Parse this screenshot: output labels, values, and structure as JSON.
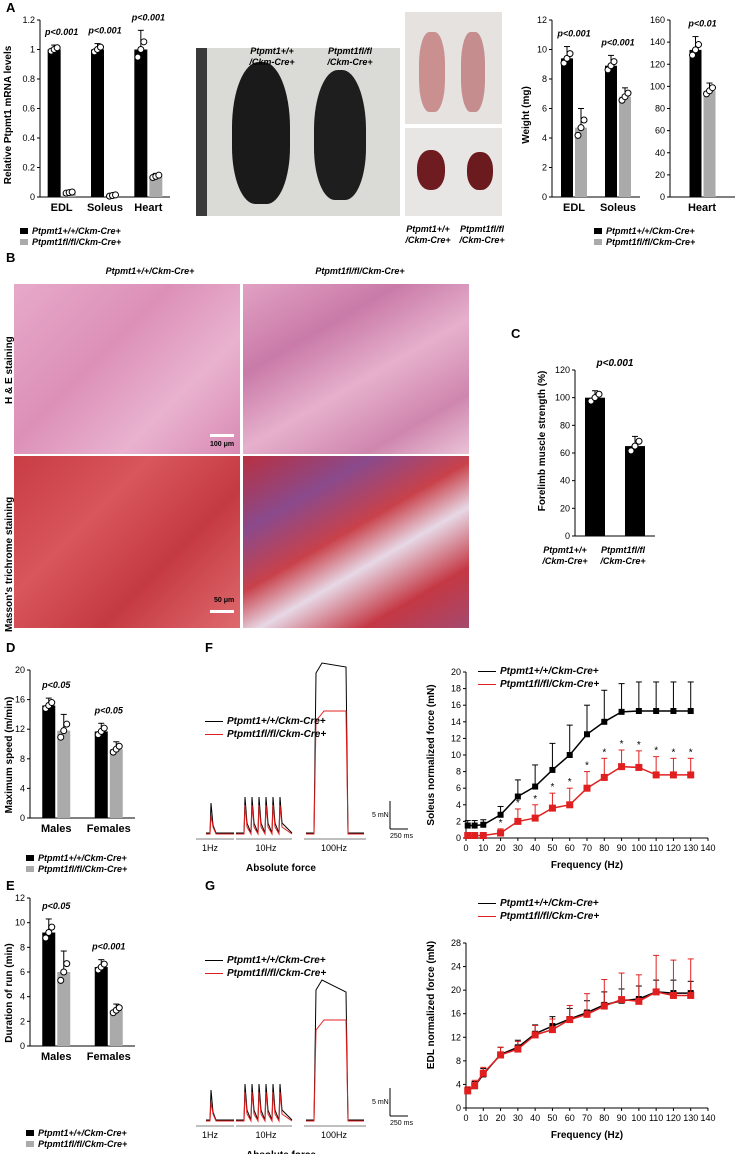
{
  "panels": {
    "A": "A",
    "B": "B",
    "C": "C",
    "D": "D",
    "E": "E",
    "F": "F",
    "G": "G"
  },
  "genotypes": {
    "wt": "Ptpmt1+/+/Ckm-Cre+",
    "ko": "Ptpmt1fl/fl/Ckm-Cre+",
    "wt_photo": "Ptpmt11+/+/Ckm-Cre+",
    "wt_top": "Ptpmt1+/+",
    "ko_top": "Ptpmt1fl/fl",
    "cre": "/Ckm-Cre+"
  },
  "histology": {
    "he_label": "H & E staining",
    "masson_label": "Masson's trichrome staining",
    "scale1": "100 μm",
    "scale2": "50 μm"
  },
  "traces": {
    "title": "Absolute force",
    "freq_labels": [
      "1Hz",
      "10Hz",
      "100Hz"
    ],
    "scale_y": "5 mN",
    "scale_x": "250 ms"
  },
  "chart_data": [
    {
      "id": "A1",
      "type": "bar",
      "categories": [
        "EDL",
        "Soleus",
        "Heart"
      ],
      "ylabel": "Relative Ptpmt1 mRNA levels",
      "ylim": [
        0,
        1.2
      ],
      "yticks": [
        0,
        0.2,
        0.4,
        0.6,
        0.8,
        1,
        1.2
      ],
      "series": [
        {
          "name": "Ptpmt1+/+/Ckm-Cre+",
          "values": [
            1.0,
            1.0,
            1.0
          ],
          "err": [
            0.03,
            0.04,
            0.13
          ]
        },
        {
          "name": "Ptpmt1fl/fl/Ckm-Cre+",
          "values": [
            0.03,
            0.01,
            0.14
          ],
          "err": [
            0.01,
            0.01,
            0.02
          ]
        }
      ],
      "pvalues": [
        "p<0.001",
        "p<0.001",
        "p<0.001"
      ]
    },
    {
      "id": "A2",
      "type": "bar",
      "categories": [
        "EDL",
        "Soleus"
      ],
      "ylabel": "Weight (mg)",
      "ylim": [
        0,
        12
      ],
      "yticks": [
        0,
        2,
        4,
        6,
        8,
        10,
        12
      ],
      "series": [
        {
          "name": "Ptpmt1+/+/Ckm-Cre+",
          "values": [
            9.4,
            8.9
          ],
          "err": [
            0.8,
            0.7
          ]
        },
        {
          "name": "Ptpmt1fl/fl/Ckm-Cre+",
          "values": [
            4.7,
            6.8
          ],
          "err": [
            1.3,
            0.6
          ]
        }
      ],
      "pvalues": [
        "p<0.001",
        "p<0.001"
      ]
    },
    {
      "id": "A3",
      "type": "bar",
      "categories": [
        "Heart"
      ],
      "ylim": [
        0,
        160
      ],
      "yticks": [
        0,
        20,
        40,
        60,
        80,
        100,
        120,
        140,
        160
      ],
      "series": [
        {
          "name": "Ptpmt1+/+/Ckm-Cre+",
          "values": [
            133
          ],
          "err": [
            12
          ]
        },
        {
          "name": "Ptpmt1fl/fl/Ckm-Cre+",
          "values": [
            96
          ],
          "err": [
            7
          ]
        }
      ],
      "pvalues": [
        "p<0.01"
      ]
    },
    {
      "id": "C",
      "type": "bar",
      "categories": [
        "Ptpmt1+/+/Ckm-Cre+",
        "Ptpmt1fl/fl/Ckm-Cre+"
      ],
      "ylabel": "Forelimb muscle strength (%)",
      "ylim": [
        0,
        120
      ],
      "yticks": [
        0,
        20,
        40,
        60,
        80,
        100,
        120
      ],
      "values": [
        100,
        65
      ],
      "err": [
        5,
        7
      ],
      "pvalue": "p<0.001"
    },
    {
      "id": "D",
      "type": "bar",
      "categories": [
        "Males",
        "Females"
      ],
      "ylabel": "Maximum speed (m/min)",
      "ylim": [
        0,
        20
      ],
      "yticks": [
        0,
        4,
        8,
        12,
        16,
        20
      ],
      "series": [
        {
          "name": "Ptpmt1+/+/Ckm-Cre+",
          "values": [
            15.2,
            11.7
          ],
          "err": [
            1.0,
            1.1
          ]
        },
        {
          "name": "Ptpmt1fl/fl/Ckm-Cre+",
          "values": [
            11.8,
            9.3
          ],
          "err": [
            2.2,
            1.0
          ]
        }
      ],
      "pvalues": [
        "p<0.05",
        "p<0.05"
      ]
    },
    {
      "id": "E",
      "type": "bar",
      "categories": [
        "Males",
        "Females"
      ],
      "ylabel": "Duration of run (min)",
      "ylim": [
        0,
        12
      ],
      "yticks": [
        0,
        2,
        4,
        6,
        8,
        10,
        12
      ],
      "series": [
        {
          "name": "Ptpmt1+/+/Ckm-Cre+",
          "values": [
            9.2,
            6.4
          ],
          "err": [
            1.1,
            0.6
          ]
        },
        {
          "name": "Ptpmt1fl/fl/Ckm-Cre+",
          "values": [
            6.0,
            2.9
          ],
          "err": [
            1.7,
            0.5
          ]
        }
      ],
      "pvalues": [
        "p<0.05",
        "p<0.001"
      ]
    },
    {
      "id": "F",
      "type": "line",
      "xlabel": "Frequency (Hz)",
      "ylabel": "Soleus normalized force (mN)",
      "xlim": [
        0,
        140
      ],
      "ylim": [
        0,
        20
      ],
      "xticks": [
        0,
        10,
        20,
        30,
        40,
        50,
        60,
        70,
        80,
        90,
        100,
        110,
        120,
        130,
        140
      ],
      "yticks": [
        0,
        2,
        4,
        6,
        8,
        10,
        12,
        14,
        16,
        18,
        20
      ],
      "x": [
        1,
        5,
        10,
        20,
        30,
        40,
        50,
        60,
        70,
        80,
        90,
        100,
        110,
        120,
        130
      ],
      "series": [
        {
          "name": "Ptpmt1+/+/Ckm-Cre+",
          "values": [
            1.5,
            1.5,
            1.6,
            2.8,
            5.0,
            6.2,
            8.2,
            10.0,
            12.5,
            14.0,
            15.2,
            15.3,
            15.3,
            15.3,
            15.3
          ],
          "err": [
            0.6,
            0.6,
            0.6,
            1.0,
            2.0,
            2.6,
            3.2,
            3.6,
            3.5,
            3.8,
            3.4,
            3.5,
            3.5,
            3.5,
            3.5
          ]
        },
        {
          "name": "Ptpmt1fl/fl/Ckm-Cre+",
          "values": [
            0.3,
            0.3,
            0.3,
            0.6,
            2.0,
            2.4,
            3.6,
            4.0,
            6.0,
            7.3,
            8.6,
            8.5,
            7.6,
            7.6,
            7.6
          ],
          "err": [
            0.2,
            0.2,
            0.2,
            0.5,
            1.5,
            1.6,
            1.8,
            2.0,
            2.0,
            2.3,
            2.0,
            2.0,
            2.2,
            2.0,
            2.0
          ]
        }
      ],
      "sig_x": [
        20,
        30,
        40,
        50,
        60,
        70,
        80,
        90,
        100,
        110,
        120,
        130
      ],
      "sig_mark": "*"
    },
    {
      "id": "G",
      "type": "line",
      "xlabel": "Frequency (Hz)",
      "ylabel": "EDL normalized force (mN)",
      "xlim": [
        0,
        140
      ],
      "ylim": [
        0,
        28
      ],
      "xticks": [
        0,
        10,
        20,
        30,
        40,
        50,
        60,
        70,
        80,
        90,
        100,
        110,
        120,
        130,
        140
      ],
      "yticks": [
        0,
        4,
        8,
        12,
        16,
        20,
        24,
        28
      ],
      "x": [
        1,
        5,
        10,
        20,
        30,
        40,
        50,
        60,
        70,
        80,
        90,
        100,
        110,
        120,
        130
      ],
      "series": [
        {
          "name": "Ptpmt1+/+/Ckm-Cre+",
          "values": [
            2.9,
            3.7,
            5.7,
            9.1,
            10.3,
            12.6,
            13.9,
            15.1,
            16.2,
            17.5,
            18.2,
            18.5,
            19.7,
            19.5,
            19.5
          ],
          "err": [
            0.6,
            0.8,
            1.0,
            1.2,
            1.2,
            1.5,
            1.6,
            1.8,
            2.0,
            2.2,
            2.0,
            2.2,
            2.0,
            2.2,
            2.0
          ]
        },
        {
          "name": "Ptpmt1fl/fl/Ckm-Cre+",
          "values": [
            2.9,
            3.8,
            5.9,
            9.0,
            10.0,
            12.4,
            13.3,
            15.0,
            15.9,
            17.3,
            18.4,
            18.1,
            19.7,
            19.1,
            19.1
          ],
          "err": [
            0.7,
            0.9,
            1.0,
            1.3,
            1.3,
            1.6,
            1.8,
            2.4,
            3.5,
            4.5,
            4.5,
            4.5,
            6.2,
            6.0,
            6.2
          ]
        }
      ]
    }
  ]
}
